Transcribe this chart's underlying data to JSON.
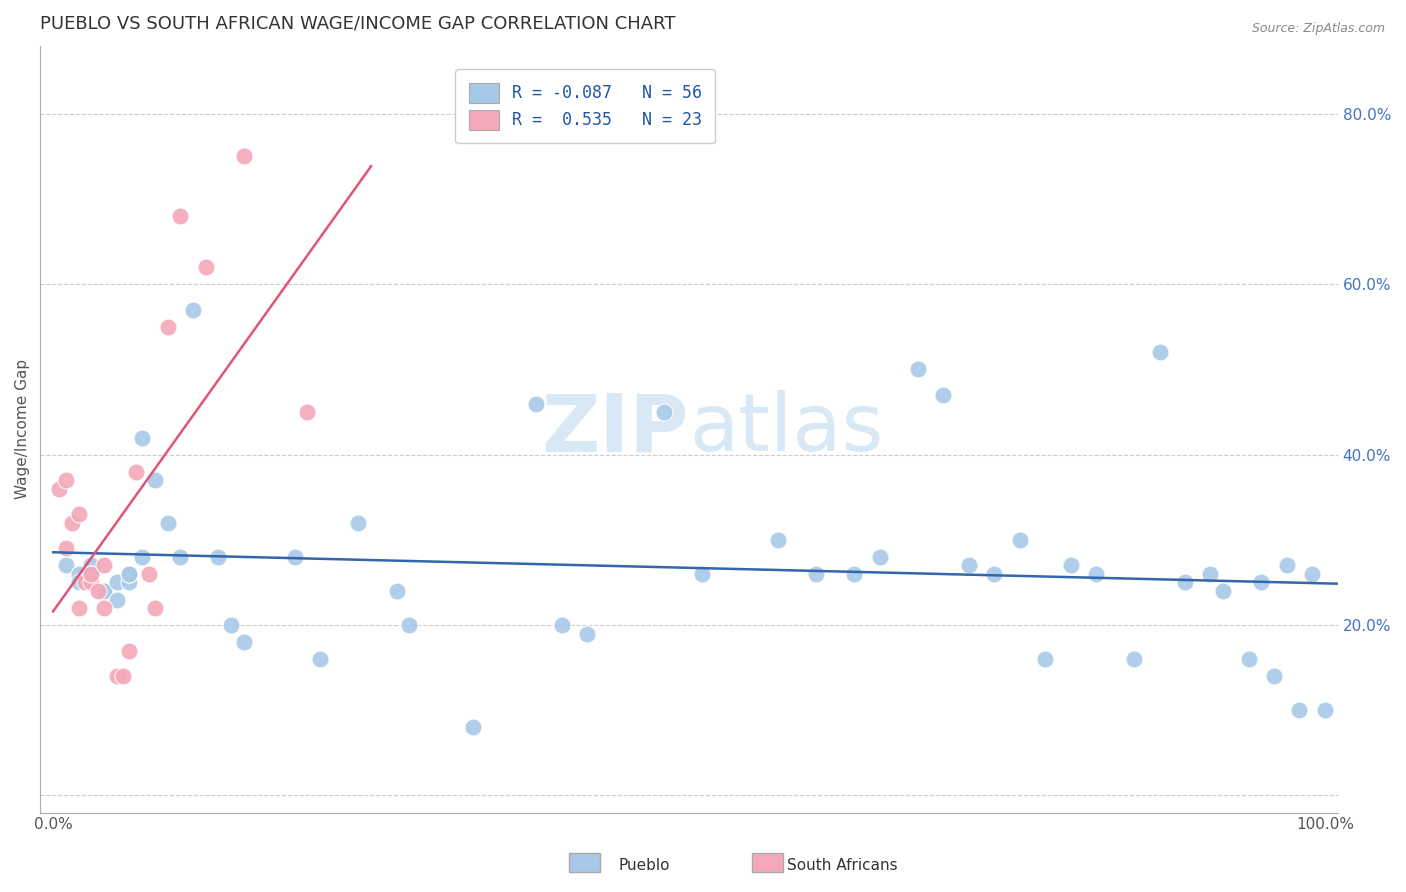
{
  "title": "PUEBLO VS SOUTH AFRICAN WAGE/INCOME GAP CORRELATION CHART",
  "source": "Source: ZipAtlas.com",
  "ylabel": "Wage/Income Gap",
  "xlim": [
    -0.01,
    1.01
  ],
  "ylim": [
    -0.02,
    0.88
  ],
  "xticks": [
    0.0,
    1.0
  ],
  "xtick_labels": [
    "0.0%",
    "100.0%"
  ],
  "yticks_right": [
    0.2,
    0.4,
    0.6,
    0.8
  ],
  "ytick_labels_right": [
    "20.0%",
    "40.0%",
    "60.0%",
    "80.0%"
  ],
  "blue_R": -0.087,
  "blue_N": 56,
  "pink_R": 0.535,
  "pink_N": 23,
  "blue_color": "#A8C8E8",
  "pink_color": "#F4A8B8",
  "blue_line_color": "#3366AA",
  "pink_line_color": "#DD5577",
  "watermark_color": "#D8E8F4",
  "blue_scatter_x": [
    0.01,
    0.02,
    0.02,
    0.03,
    0.03,
    0.04,
    0.04,
    0.05,
    0.05,
    0.06,
    0.06,
    0.06,
    0.07,
    0.07,
    0.08,
    0.09,
    0.1,
    0.11,
    0.13,
    0.14,
    0.15,
    0.19,
    0.21,
    0.24,
    0.27,
    0.28,
    0.33,
    0.38,
    0.4,
    0.42,
    0.48,
    0.51,
    0.57,
    0.6,
    0.63,
    0.65,
    0.68,
    0.7,
    0.72,
    0.74,
    0.76,
    0.78,
    0.8,
    0.82,
    0.85,
    0.87,
    0.89,
    0.91,
    0.92,
    0.94,
    0.95,
    0.96,
    0.97,
    0.98,
    0.99,
    1.0
  ],
  "blue_scatter_y": [
    0.27,
    0.26,
    0.25,
    0.27,
    0.26,
    0.24,
    0.24,
    0.25,
    0.23,
    0.25,
    0.26,
    0.26,
    0.28,
    0.42,
    0.37,
    0.32,
    0.28,
    0.57,
    0.28,
    0.2,
    0.18,
    0.28,
    0.16,
    0.32,
    0.24,
    0.2,
    0.08,
    0.46,
    0.2,
    0.19,
    0.45,
    0.26,
    0.3,
    0.26,
    0.26,
    0.28,
    0.5,
    0.47,
    0.27,
    0.26,
    0.3,
    0.16,
    0.27,
    0.26,
    0.16,
    0.52,
    0.25,
    0.26,
    0.24,
    0.16,
    0.25,
    0.14,
    0.27,
    0.1,
    0.26,
    0.1
  ],
  "pink_scatter_x": [
    0.005,
    0.01,
    0.01,
    0.015,
    0.02,
    0.02,
    0.025,
    0.03,
    0.03,
    0.035,
    0.04,
    0.04,
    0.05,
    0.055,
    0.06,
    0.065,
    0.075,
    0.08,
    0.09,
    0.1,
    0.12,
    0.15,
    0.2
  ],
  "pink_scatter_y": [
    0.36,
    0.37,
    0.29,
    0.32,
    0.22,
    0.33,
    0.25,
    0.25,
    0.26,
    0.24,
    0.22,
    0.27,
    0.14,
    0.14,
    0.17,
    0.38,
    0.26,
    0.22,
    0.55,
    0.68,
    0.62,
    0.75,
    0.45
  ],
  "legend_labels": [
    "Pueblo",
    "South Africans"
  ],
  "title_fontsize": 13,
  "axis_label_fontsize": 11,
  "tick_fontsize": 11,
  "background_color": "#FFFFFF",
  "grid_color": "#CCCCCC"
}
